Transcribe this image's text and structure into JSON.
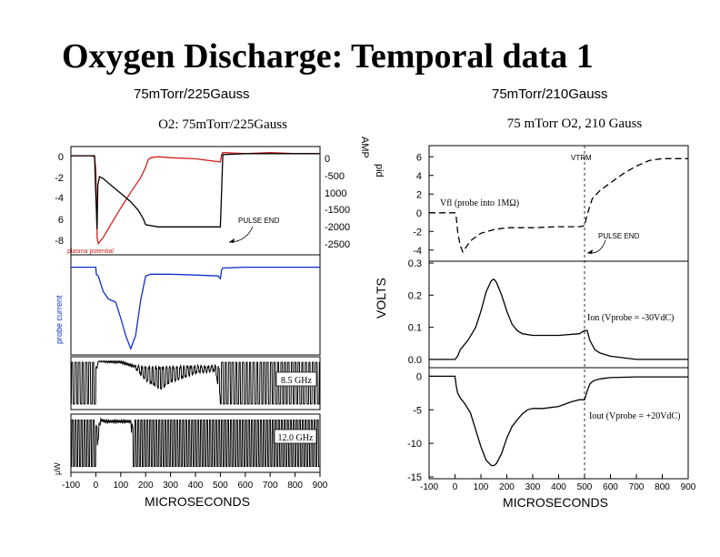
{
  "slide": {
    "title": "Oxygen Discharge: Temporal data 1",
    "left_subtitle": "75mTorr/225Gauss",
    "right_subtitle": "75mTorr/210Gauss"
  },
  "colors": {
    "red_trace": "#d42020",
    "blue_trace": "#1030c8",
    "black_trace": "#000000"
  },
  "chart_data": [
    {
      "type": "line",
      "panel": "left",
      "title": "O2: 75mTorr/225Gauss",
      "xlabel": "MICROSECONDS",
      "xlim": [
        -100,
        900
      ],
      "xticks": [
        -100,
        0,
        100,
        200,
        300,
        400,
        500,
        600,
        700,
        800,
        900
      ],
      "x_tick_labels": [
        "-100",
        "0",
        "100",
        "200",
        "300",
        "400",
        "500",
        "600",
        "700",
        "800",
        "900"
      ],
      "pulse_end_label": "PULSE END",
      "left_yticks": [
        "0",
        "-2",
        "-4",
        "6",
        "-8"
      ],
      "right_yticks": [
        "0",
        "-500",
        "1000",
        "-1500",
        "-2000",
        "-2500"
      ],
      "rotated_labels": {
        "top_left": "plasma potential",
        "top_right": "pid",
        "mid_left": "probe current",
        "bottom_left": "μW"
      },
      "subpanels": [
        {
          "name": "potential and current",
          "ylim": [
            -9.5,
            0.5
          ],
          "series": [
            {
              "name": "red trace",
              "color": "#d42020",
              "x": [
                -100,
                -20,
                -5,
                0,
                5,
                10,
                30,
                60,
                100,
                140,
                180,
                200,
                210,
                220,
                250,
                300,
                400,
                500,
                505,
                510,
                600,
                700,
                800,
                900
              ],
              "y": [
                -0.2,
                -0.2,
                -0.3,
                -1.5,
                -8.0,
                -8.6,
                -8.0,
                -6.8,
                -5.2,
                -3.7,
                -2.3,
                -1.3,
                -0.6,
                -0.4,
                -0.3,
                -0.4,
                -0.5,
                -0.8,
                -0.1,
                0.1,
                0.0,
                0.1,
                0.0,
                0.0
              ]
            },
            {
              "name": "black trace",
              "color": "#000000",
              "x": [
                -100,
                -5,
                0,
                5,
                8,
                15,
                30,
                60,
                100,
                140,
                170,
                190,
                200,
                250,
                300,
                400,
                480,
                495,
                500,
                505,
                510,
                600,
                700,
                800,
                900
              ],
              "y": [
                -0.2,
                -0.2,
                -4.0,
                -7.2,
                -3.0,
                -2.2,
                -2.4,
                -3.0,
                -3.8,
                -4.6,
                -5.4,
                -6.2,
                -6.8,
                -7.0,
                -7.0,
                -7.0,
                -7.0,
                -7.0,
                -7.0,
                -3.5,
                -0.1,
                0.0,
                0.0,
                0.0,
                0.0
              ]
            }
          ]
        },
        {
          "name": "probe current",
          "ylim": [
            -1.0,
            0.1
          ],
          "series": [
            {
              "name": "blue trace",
              "color": "#1030c8",
              "x": [
                -100,
                0,
                2,
                10,
                30,
                50,
                80,
                100,
                120,
                140,
                160,
                180,
                200,
                220,
                300,
                400,
                490,
                500,
                505,
                510,
                600,
                700,
                800,
                900
              ],
              "y": [
                -0.02,
                -0.02,
                -0.1,
                -0.12,
                -0.3,
                -0.38,
                -0.42,
                -0.6,
                -0.8,
                -0.95,
                -0.8,
                -0.4,
                -0.12,
                -0.1,
                -0.1,
                -0.11,
                -0.12,
                -0.15,
                -0.05,
                -0.03,
                -0.02,
                -0.02,
                -0.02,
                -0.02
              ]
            }
          ]
        },
        {
          "name": "8.5 GHz interferometer",
          "label": "8.5 GHz",
          "ylim": [
            -1.0,
            1.0
          ],
          "series": [
            {
              "name": "8.5 GHz fringe",
              "color": "#000000",
              "x": [
                -100,
                -10,
                0,
                10,
                30,
                50,
                100,
                150,
                200,
                260,
                300,
                400,
                480,
                500,
                600,
                700,
                800,
                900
              ],
              "y": [
                0,
                0,
                0,
                0.92,
                0.9,
                0.88,
                0.86,
                0.7,
                0.4,
                0.2,
                0.35,
                0.55,
                0.6,
                0,
                0,
                0,
                0,
                0
              ]
            }
          ]
        },
        {
          "name": "12.0 GHz interferometer",
          "label": "12.0 GHz",
          "ylim": [
            -1.0,
            1.0
          ],
          "series": [
            {
              "name": "12.0 GHz fringe",
              "color": "#000000",
              "x": [
                -100,
                -5,
                0,
                20,
                40,
                50,
                100,
                140,
                150,
                200,
                300,
                400,
                490,
                500,
                600,
                700,
                800,
                900
              ],
              "y": [
                0,
                0,
                0,
                0.85,
                0.8,
                0.8,
                0.8,
                0.8,
                0,
                0,
                0,
                0,
                0,
                0,
                0,
                0,
                0,
                0
              ]
            }
          ]
        }
      ]
    },
    {
      "type": "line",
      "panel": "right",
      "title": "75 mTorr O2, 210 Gauss",
      "xlabel": "MICROSECONDS",
      "xlim": [
        -100,
        900
      ],
      "xticks": [
        -100,
        0,
        100,
        200,
        300,
        400,
        500,
        600,
        700,
        800,
        900
      ],
      "x_tick_labels": [
        "-100",
        "0",
        "100",
        "200",
        "300",
        "400",
        "500",
        "600",
        "700",
        "800",
        "900"
      ],
      "pulse_end_label": "PULSE END",
      "top_marker_label": "VTRM",
      "ylabel": "VOLTS",
      "ylabel_top": "AMP",
      "subpanels": [
        {
          "name": "floating potential",
          "annotation": "Vfl (probe into 1MΩ)",
          "ylim": [
            -5,
            7
          ],
          "yticks": [
            6,
            4,
            2,
            0,
            -2,
            -4
          ],
          "ytick_labels": [
            "6",
            "4",
            "2",
            "0",
            "-2",
            "-4"
          ],
          "series": [
            {
              "name": "floating potential",
              "color": "#000000",
              "dashed": true,
              "x": [
                -100,
                -5,
                0,
                5,
                10,
                20,
                30,
                40,
                60,
                100,
                150,
                200,
                250,
                300,
                400,
                480,
                500,
                510,
                530,
                560,
                600,
                650,
                700,
                750,
                800,
                900
              ],
              "y": [
                0,
                0,
                0,
                -0.5,
                -2.0,
                -3.5,
                -4.2,
                -3.8,
                -3.0,
                -2.2,
                -1.8,
                -1.6,
                -1.6,
                -1.6,
                -1.5,
                -1.5,
                -1.4,
                -0.2,
                1.5,
                2.4,
                3.2,
                4.2,
                5.0,
                5.6,
                5.8,
                5.8
              ]
            }
          ]
        },
        {
          "name": "ion saturation current",
          "annotation": "Ion (Vprobe = -30VdC)",
          "ylim": [
            -0.02,
            0.3
          ],
          "yticks": [
            0.3,
            0.2,
            0.1,
            0.0
          ],
          "ytick_labels": [
            "0.3",
            "0.2",
            "0.1",
            "0.0"
          ],
          "series": [
            {
              "name": "ion current",
              "color": "#000000",
              "x": [
                -100,
                -5,
                0,
                10,
                20,
                30,
                50,
                80,
                100,
                120,
                140,
                150,
                160,
                180,
                200,
                220,
                240,
                260,
                300,
                400,
                480,
                500,
                510,
                520,
                540,
                560,
                600,
                700,
                800,
                900
              ],
              "y": [
                0,
                0,
                0,
                0.01,
                0.03,
                0.04,
                0.06,
                0.1,
                0.15,
                0.21,
                0.245,
                0.25,
                0.24,
                0.2,
                0.15,
                0.11,
                0.09,
                0.08,
                0.075,
                0.075,
                0.08,
                0.09,
                0.09,
                0.06,
                0.03,
                0.02,
                0.01,
                0,
                0,
                0
              ]
            }
          ]
        },
        {
          "name": "electron current",
          "annotation": "Iout (Vprobe = +20VdC)",
          "ylim": [
            -15,
            1
          ],
          "yticks": [
            0,
            -5,
            -10,
            -15
          ],
          "ytick_labels": [
            "0",
            "-5",
            "-10",
            "-15"
          ],
          "series": [
            {
              "name": "electron current",
              "color": "#000000",
              "x": [
                -100,
                -5,
                0,
                5,
                10,
                20,
                40,
                60,
                80,
                100,
                120,
                140,
                150,
                160,
                180,
                200,
                220,
                240,
                260,
                280,
                300,
                340,
                400,
                450,
                480,
                500,
                510,
                520,
                530,
                540,
                560,
                600,
                700,
                800,
                900
              ],
              "y": [
                0,
                0,
                0,
                -1.5,
                -2.5,
                -3.2,
                -4.2,
                -5.5,
                -8.0,
                -10.5,
                -12.5,
                -13.3,
                -13.3,
                -13.0,
                -11.5,
                -9.2,
                -7.5,
                -6.5,
                -5.6,
                -5.0,
                -4.8,
                -4.8,
                -4.5,
                -3.8,
                -3.5,
                -3.5,
                -2.2,
                -1.2,
                -0.8,
                -0.6,
                -0.4,
                -0.2,
                -0.1,
                -0.1,
                -0.1
              ]
            }
          ]
        }
      ]
    }
  ]
}
